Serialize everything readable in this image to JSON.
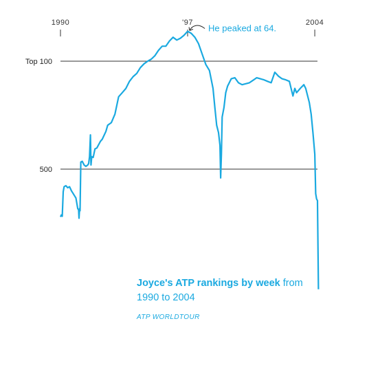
{
  "caption": {
    "title_bold": "Joyce's ATP rankings by week",
    "title_rest": "from 1990 to 2004",
    "source": "ATP WORLDTOUR"
  },
  "colors": {
    "line": "#1aa9e0",
    "reference": "#333333",
    "text": "#333333"
  },
  "chart_data": {
    "type": "line",
    "title": "",
    "xlabel": "",
    "ylabel": "",
    "x_ticks": [
      {
        "year": 1990,
        "label": "1990"
      },
      {
        "year": 1997,
        "label": "'97"
      },
      {
        "year": 2004,
        "label": "2004"
      }
    ],
    "reference_lines": [
      {
        "rank": 100,
        "label": "Top 100"
      },
      {
        "rank": 500,
        "label": "500"
      }
    ],
    "annotation": {
      "text": "He peaked at 64.",
      "year": 1997.0,
      "rank": 64
    },
    "xlim": [
      1990,
      2004.3
    ],
    "y_scale": "log",
    "y_inverted": true,
    "series": [
      {
        "name": "",
        "points": [
          [
            1990.0,
            1020
          ],
          [
            1990.05,
            990
          ],
          [
            1990.1,
            1010
          ],
          [
            1990.15,
            700
          ],
          [
            1990.2,
            650
          ],
          [
            1990.3,
            640
          ],
          [
            1990.4,
            660
          ],
          [
            1990.5,
            650
          ],
          [
            1990.6,
            690
          ],
          [
            1990.7,
            720
          ],
          [
            1990.85,
            770
          ],
          [
            1990.95,
            900
          ],
          [
            1991.0,
            920
          ],
          [
            1991.02,
            1040
          ],
          [
            1991.05,
            900
          ],
          [
            1991.08,
            930
          ],
          [
            1991.12,
            450
          ],
          [
            1991.2,
            445
          ],
          [
            1991.3,
            470
          ],
          [
            1991.4,
            480
          ],
          [
            1991.5,
            470
          ],
          [
            1991.55,
            460
          ],
          [
            1991.6,
            415
          ],
          [
            1991.65,
            300
          ],
          [
            1991.68,
            470
          ],
          [
            1991.72,
            415
          ],
          [
            1991.8,
            420
          ],
          [
            1991.9,
            370
          ],
          [
            1992.0,
            365
          ],
          [
            1992.2,
            330
          ],
          [
            1992.3,
            320
          ],
          [
            1992.5,
            285
          ],
          [
            1992.6,
            260
          ],
          [
            1992.8,
            250
          ],
          [
            1993.0,
            220
          ],
          [
            1993.2,
            170
          ],
          [
            1993.4,
            160
          ],
          [
            1993.6,
            150
          ],
          [
            1993.8,
            135
          ],
          [
            1994.0,
            126
          ],
          [
            1994.2,
            120
          ],
          [
            1994.4,
            110
          ],
          [
            1994.6,
            104
          ],
          [
            1994.8,
            100
          ],
          [
            1995.0,
            97
          ],
          [
            1995.2,
            92
          ],
          [
            1995.4,
            85
          ],
          [
            1995.6,
            80
          ],
          [
            1995.8,
            80
          ],
          [
            1996.0,
            74
          ],
          [
            1996.2,
            70
          ],
          [
            1996.4,
            73
          ],
          [
            1996.6,
            71
          ],
          [
            1996.8,
            68
          ],
          [
            1997.0,
            64
          ],
          [
            1997.2,
            66
          ],
          [
            1997.4,
            70
          ],
          [
            1997.6,
            77
          ],
          [
            1997.8,
            90
          ],
          [
            1998.0,
            105
          ],
          [
            1998.2,
            115
          ],
          [
            1998.4,
            150
          ],
          [
            1998.5,
            200
          ],
          [
            1998.6,
            260
          ],
          [
            1998.7,
            290
          ],
          [
            1998.78,
            350
          ],
          [
            1998.82,
            570
          ],
          [
            1998.86,
            400
          ],
          [
            1998.9,
            230
          ],
          [
            1999.0,
            200
          ],
          [
            1999.1,
            160
          ],
          [
            1999.2,
            145
          ],
          [
            1999.4,
            130
          ],
          [
            1999.6,
            128
          ],
          [
            1999.8,
            138
          ],
          [
            2000.0,
            142
          ],
          [
            2000.2,
            140
          ],
          [
            2000.4,
            138
          ],
          [
            2000.6,
            133
          ],
          [
            2000.8,
            128
          ],
          [
            2001.0,
            130
          ],
          [
            2001.2,
            132
          ],
          [
            2001.4,
            135
          ],
          [
            2001.6,
            138
          ],
          [
            2001.8,
            118
          ],
          [
            2002.0,
            125
          ],
          [
            2002.2,
            130
          ],
          [
            2002.4,
            132
          ],
          [
            2002.6,
            135
          ],
          [
            2002.8,
            168
          ],
          [
            2002.9,
            150
          ],
          [
            2003.0,
            160
          ],
          [
            2003.2,
            150
          ],
          [
            2003.4,
            142
          ],
          [
            2003.5,
            150
          ],
          [
            2003.7,
            185
          ],
          [
            2003.8,
            220
          ],
          [
            2003.9,
            290
          ],
          [
            2004.0,
            400
          ],
          [
            2004.05,
            720
          ],
          [
            2004.1,
            780
          ],
          [
            2004.15,
            800
          ],
          [
            2004.2,
            3000
          ]
        ]
      }
    ]
  }
}
